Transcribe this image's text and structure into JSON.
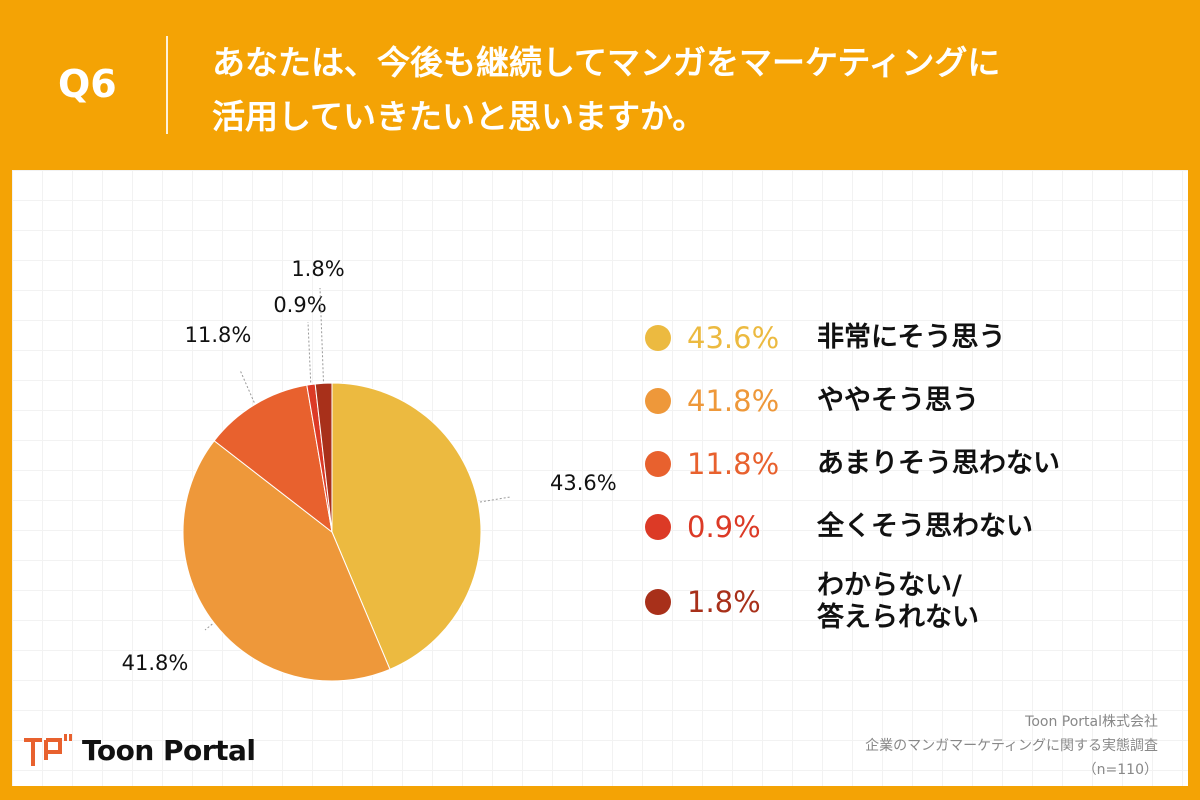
{
  "header": {
    "question_number": "Q6",
    "title_line1": "あなたは、今後も継続してマンガをマーケティングに",
    "title_line2": "活用していきたいと思いますか。"
  },
  "chart_data": {
    "type": "pie",
    "start": "top",
    "direction": "clockwise",
    "slices": [
      {
        "label": "非常にそう思う",
        "value": 43.6,
        "display": "43.6%",
        "color": "#ECBA40"
      },
      {
        "label": "ややそう思う",
        "value": 41.8,
        "display": "41.8%",
        "color": "#EE983A"
      },
      {
        "label": "あまりそう思わない",
        "value": 11.8,
        "display": "11.8%",
        "color": "#E8612E"
      },
      {
        "label": "全くそう思わない",
        "value": 0.9,
        "display": "0.9%",
        "color": "#DC3A26"
      },
      {
        "label": "わからない/\n答えられない",
        "label_line1": "わからない/",
        "label_line2": "答えられない",
        "value": 1.8,
        "display": "1.8%",
        "color": "#A8301A"
      }
    ],
    "legend_placement": "right"
  },
  "footer": {
    "logo_text": "Toon Portal",
    "credit_line1": "Toon Portal株式会社",
    "credit_line2": "企業のマンガマーケティングに関する実態調査",
    "credit_line3": "（n=110）"
  },
  "colors": {
    "brand": "#F4A305"
  }
}
